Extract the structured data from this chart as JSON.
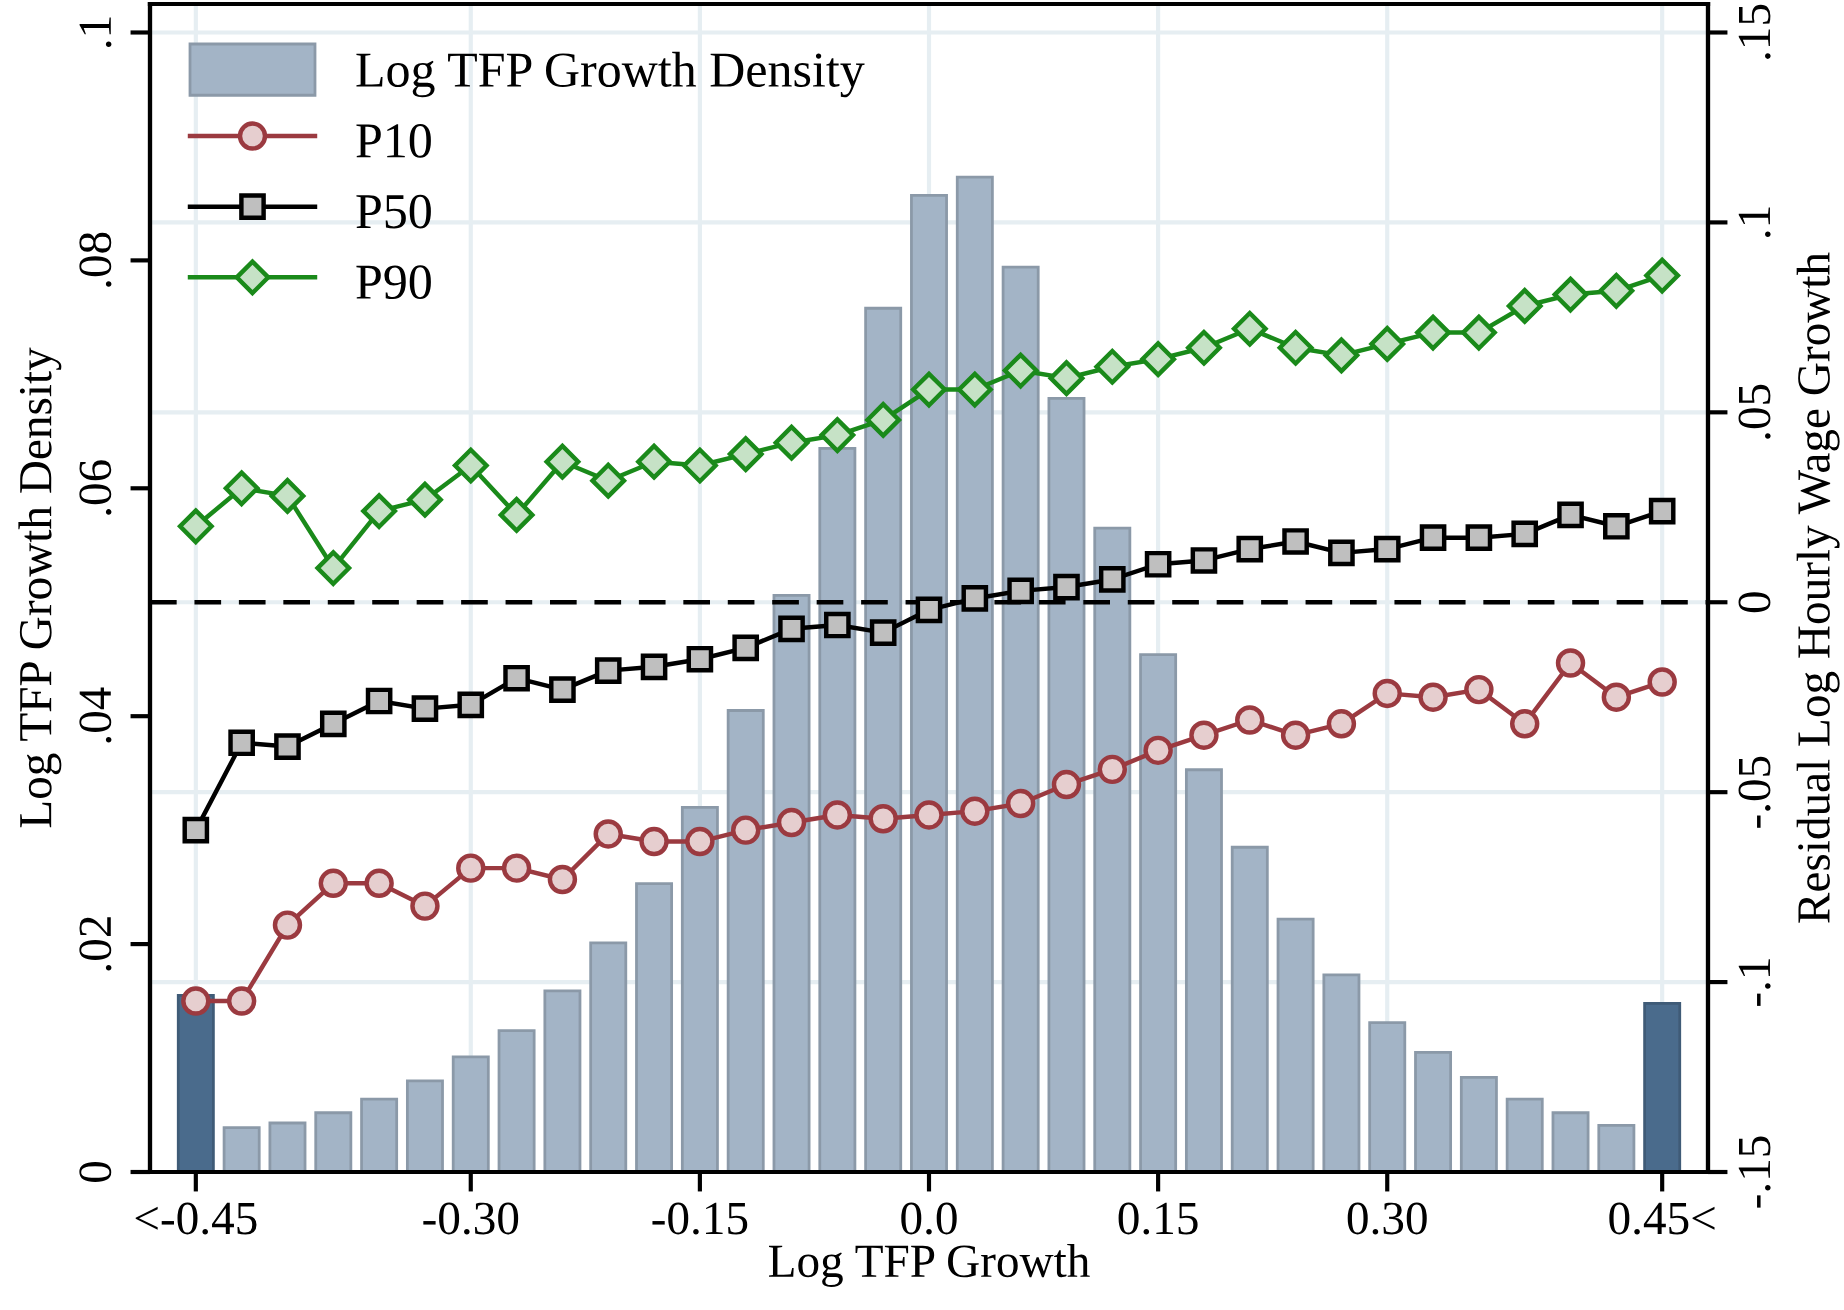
{
  "chart_data": {
    "type": "bar",
    "xlabel": "Log TFP Growth",
    "ylabel": "Log TFP Growth Density",
    "y2label": "Residual Log Hourly Wage Growth",
    "x": [
      -0.48,
      -0.45,
      -0.42,
      -0.39,
      -0.36,
      -0.33,
      -0.3,
      -0.27,
      -0.24,
      -0.21,
      -0.18,
      -0.15,
      -0.12,
      -0.09,
      -0.06,
      -0.03,
      0.0,
      0.03,
      0.06,
      0.09,
      0.12,
      0.15,
      0.18,
      0.21,
      0.24,
      0.27,
      0.3,
      0.33,
      0.36,
      0.39,
      0.42,
      0.45,
      0.48
    ],
    "series": [
      {
        "name": "Log TFP Growth Density",
        "color": "#a3b4c6",
        "colors": [
          "#4a6b8c",
          "#a3b4c6",
          "#a3b4c6",
          "#a3b4c6",
          "#a3b4c6",
          "#a3b4c6",
          "#a3b4c6",
          "#a3b4c6",
          "#a3b4c6",
          "#a3b4c6",
          "#a3b4c6",
          "#a3b4c6",
          "#a3b4c6",
          "#a3b4c6",
          "#a3b4c6",
          "#a3b4c6",
          "#a3b4c6",
          "#a3b4c6",
          "#a3b4c6",
          "#a3b4c6",
          "#a3b4c6",
          "#a3b4c6",
          "#a3b4c6",
          "#a3b4c6",
          "#a3b4c6",
          "#a3b4c6",
          "#a3b4c6",
          "#a3b4c6",
          "#a3b4c6",
          "#a3b4c6",
          "#a3b4c6",
          "#a3b4c6",
          "#4a6b8c"
        ],
        "values": [
          0.0155,
          0.0039,
          0.0043,
          0.0052,
          0.0064,
          0.008,
          0.0101,
          0.0124,
          0.0159,
          0.0201,
          0.0253,
          0.032,
          0.0405,
          0.0506,
          0.0635,
          0.0758,
          0.0857,
          0.0873,
          0.0794,
          0.0679,
          0.0565,
          0.0454,
          0.0353,
          0.0285,
          0.0222,
          0.0173,
          0.0131,
          0.0105,
          0.0083,
          0.0064,
          0.0052,
          0.0041,
          0.0148
        ]
      },
      {
        "name": "P10",
        "type": "line",
        "axis": "y2",
        "marker": "circle",
        "color": "#9b3a40",
        "values": [
          -0.105,
          -0.105,
          -0.085,
          -0.074,
          -0.074,
          -0.08,
          -0.07,
          -0.07,
          -0.073,
          -0.061,
          -0.063,
          -0.063,
          -0.06,
          -0.058,
          -0.056,
          -0.057,
          -0.056,
          -0.055,
          -0.053,
          -0.048,
          -0.044,
          -0.039,
          -0.035,
          -0.031,
          -0.035,
          -0.032,
          -0.024,
          -0.025,
          -0.023,
          -0.032,
          -0.016,
          -0.025,
          -0.021
        ]
      },
      {
        "name": "P50",
        "type": "line",
        "axis": "y2",
        "marker": "square",
        "color": "#000000",
        "values": [
          -0.06,
          -0.037,
          -0.038,
          -0.032,
          -0.026,
          -0.028,
          -0.027,
          -0.02,
          -0.023,
          -0.018,
          -0.017,
          -0.015,
          -0.012,
          -0.007,
          -0.006,
          -0.008,
          -0.002,
          0.001,
          0.003,
          0.004,
          0.006,
          0.01,
          0.011,
          0.014,
          0.016,
          0.013,
          0.014,
          0.017,
          0.017,
          0.018,
          0.023,
          0.02,
          0.024
        ]
      },
      {
        "name": "P90",
        "type": "line",
        "axis": "y2",
        "marker": "diamond",
        "color": "#1a8a1a",
        "values": [
          0.02,
          0.03,
          0.028,
          0.009,
          0.024,
          0.027,
          0.036,
          0.023,
          0.037,
          0.032,
          0.037,
          0.036,
          0.039,
          0.042,
          0.044,
          0.048,
          0.056,
          0.056,
          0.061,
          0.059,
          0.062,
          0.064,
          0.067,
          0.072,
          0.067,
          0.065,
          0.068,
          0.071,
          0.071,
          0.078,
          0.081,
          0.082,
          0.086
        ]
      }
    ],
    "xlim": [
      -0.51,
      0.51
    ],
    "xticks": [
      {
        "value": -0.48,
        "label": "<-0.45"
      },
      {
        "value": -0.3,
        "label": "-0.30"
      },
      {
        "value": -0.15,
        "label": "-0.15"
      },
      {
        "value": 0,
        "label": "0.0"
      },
      {
        "value": 0.15,
        "label": "0.15"
      },
      {
        "value": 0.3,
        "label": "0.30"
      },
      {
        "value": 0.48,
        "label": "0.45<"
      }
    ],
    "ylim": [
      0,
      0.1025
    ],
    "yticks": [
      0,
      {
        "value": 0.02,
        "label": ".02"
      },
      {
        "value": 0.04,
        "label": ".04"
      },
      {
        "value": 0.06,
        "label": ".06"
      },
      {
        "value": 0.08,
        "label": ".08"
      },
      {
        "value": 0.1,
        "label": ".1"
      }
    ],
    "y2lim": [
      -0.15,
      0.1575
    ],
    "y2ticks": [
      {
        "value": -0.15,
        "label": "-.15"
      },
      {
        "value": -0.1,
        "label": "-.1"
      },
      {
        "value": -0.05,
        "label": "-.05"
      },
      0,
      {
        "value": 0.05,
        "label": ".05"
      },
      {
        "value": 0.1,
        "label": ".1"
      },
      {
        "value": 0.15,
        "label": ".15"
      }
    ],
    "ref_lines": [
      {
        "axis": "y2",
        "value": 0,
        "color": "#000000",
        "line_style": "dashed"
      }
    ],
    "grid": true,
    "legend": "top left"
  }
}
